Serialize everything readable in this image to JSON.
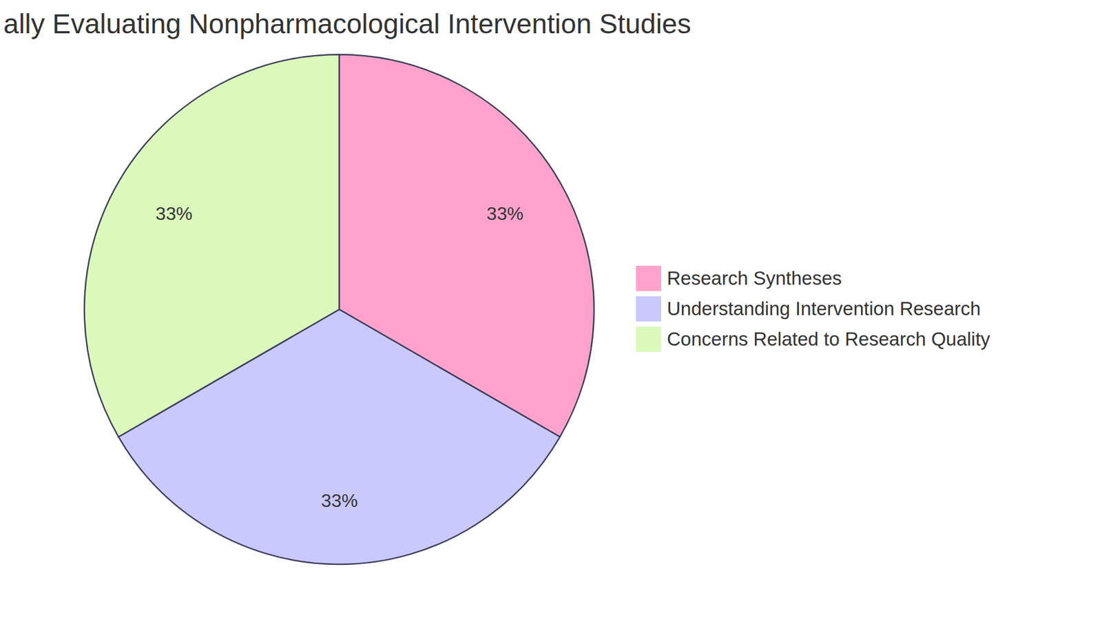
{
  "chart_data": {
    "type": "pie",
    "title": "ally Evaluating Nonpharmacological Intervention Studies",
    "categories": [
      "Research Syntheses",
      "Understanding Intervention Research",
      "Concerns Related to Research Quality"
    ],
    "values": [
      33,
      33,
      33
    ],
    "value_labels": [
      "33%",
      "33%",
      "33%"
    ],
    "colors": [
      "#FFA3CC",
      "#C9C9FF",
      "#DAF9BB"
    ],
    "data_labels": true,
    "legend": "right"
  }
}
